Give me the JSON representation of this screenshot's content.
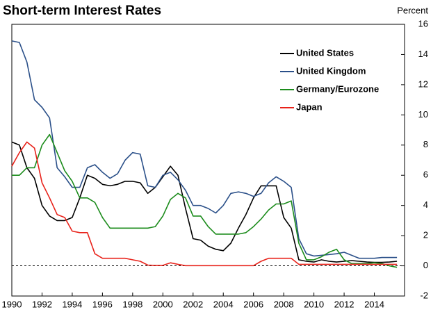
{
  "chart_data": {
    "type": "line",
    "title": "Short-term Interest Rates",
    "y_label": "Percent",
    "x": [
      1990,
      1990.5,
      1991,
      1991.5,
      1992,
      1992.5,
      1993,
      1993.5,
      1994,
      1994.5,
      1995,
      1995.5,
      1996,
      1996.5,
      1997,
      1997.5,
      1998,
      1998.5,
      1999,
      1999.5,
      2000,
      2000.5,
      2001,
      2001.5,
      2002,
      2002.5,
      2003,
      2003.5,
      2004,
      2004.5,
      2005,
      2005.5,
      2006,
      2006.5,
      2007,
      2007.5,
      2008,
      2008.5,
      2009,
      2009.5,
      2010,
      2010.5,
      2011,
      2011.5,
      2012,
      2012.5,
      2013,
      2013.5,
      2014,
      2014.5,
      2015,
      2015.5
    ],
    "series": [
      {
        "name": "United States",
        "color": "#000000",
        "values": [
          8.2,
          8.0,
          6.5,
          5.8,
          4.0,
          3.3,
          3.0,
          3.0,
          3.2,
          4.5,
          6.0,
          5.8,
          5.4,
          5.3,
          5.4,
          5.6,
          5.6,
          5.5,
          4.8,
          5.2,
          5.9,
          6.6,
          6.0,
          3.8,
          1.8,
          1.7,
          1.3,
          1.1,
          1.0,
          1.5,
          2.5,
          3.4,
          4.5,
          5.3,
          5.3,
          5.3,
          3.2,
          2.5,
          0.4,
          0.3,
          0.25,
          0.4,
          0.3,
          0.25,
          0.3,
          0.35,
          0.3,
          0.25,
          0.23,
          0.23,
          0.25,
          0.3
        ]
      },
      {
        "name": "United Kingdom",
        "color": "#2b5089",
        "values": [
          14.9,
          14.8,
          13.5,
          11.0,
          10.5,
          9.8,
          6.5,
          5.9,
          5.2,
          5.2,
          6.5,
          6.7,
          6.2,
          5.8,
          6.1,
          7.0,
          7.5,
          7.4,
          5.3,
          5.2,
          6.0,
          6.2,
          5.7,
          5.0,
          4.0,
          4.0,
          3.8,
          3.5,
          4.0,
          4.8,
          4.9,
          4.8,
          4.6,
          4.8,
          5.5,
          5.9,
          5.6,
          5.2,
          1.8,
          0.8,
          0.65,
          0.7,
          0.75,
          0.8,
          0.9,
          0.7,
          0.5,
          0.5,
          0.5,
          0.55,
          0.55,
          0.55
        ]
      },
      {
        "name": "Germany/Eurozone",
        "color": "#1c8c1c",
        "values": [
          6.0,
          6.0,
          6.5,
          6.5,
          8.0,
          8.7,
          7.5,
          6.3,
          5.6,
          4.5,
          4.5,
          4.2,
          3.2,
          2.5,
          2.5,
          2.5,
          2.5,
          2.5,
          2.5,
          2.6,
          3.3,
          4.4,
          4.8,
          4.5,
          3.3,
          3.3,
          2.6,
          2.1,
          2.1,
          2.1,
          2.1,
          2.2,
          2.6,
          3.1,
          3.7,
          4.1,
          4.1,
          4.3,
          1.5,
          0.4,
          0.4,
          0.6,
          0.9,
          1.1,
          0.4,
          0.15,
          0.15,
          0.15,
          0.2,
          0.15,
          0.0,
          -0.1
        ]
      },
      {
        "name": "Japan",
        "color": "#e8221a",
        "values": [
          6.6,
          7.5,
          8.2,
          7.8,
          5.5,
          4.5,
          3.4,
          3.2,
          2.3,
          2.2,
          2.2,
          0.8,
          0.5,
          0.5,
          0.5,
          0.5,
          0.4,
          0.3,
          0.05,
          0.03,
          0.03,
          0.2,
          0.1,
          0.01,
          0.01,
          0.01,
          0.01,
          0.01,
          0.01,
          0.01,
          0.01,
          0.01,
          0.01,
          0.3,
          0.5,
          0.5,
          0.5,
          0.5,
          0.1,
          0.1,
          0.1,
          0.1,
          0.1,
          0.1,
          0.1,
          0.1,
          0.1,
          0.1,
          0.1,
          0.1,
          0.1,
          0.1
        ]
      }
    ],
    "xlim": [
      1990,
      2016
    ],
    "xticks": [
      1990,
      1992,
      1994,
      1996,
      1998,
      2000,
      2002,
      2004,
      2006,
      2008,
      2010,
      2012,
      2014
    ],
    "ylim": [
      -2,
      16
    ],
    "yticks": [
      -2,
      0,
      2,
      4,
      6,
      8,
      10,
      12,
      14,
      16
    ],
    "legend": "top-right"
  }
}
